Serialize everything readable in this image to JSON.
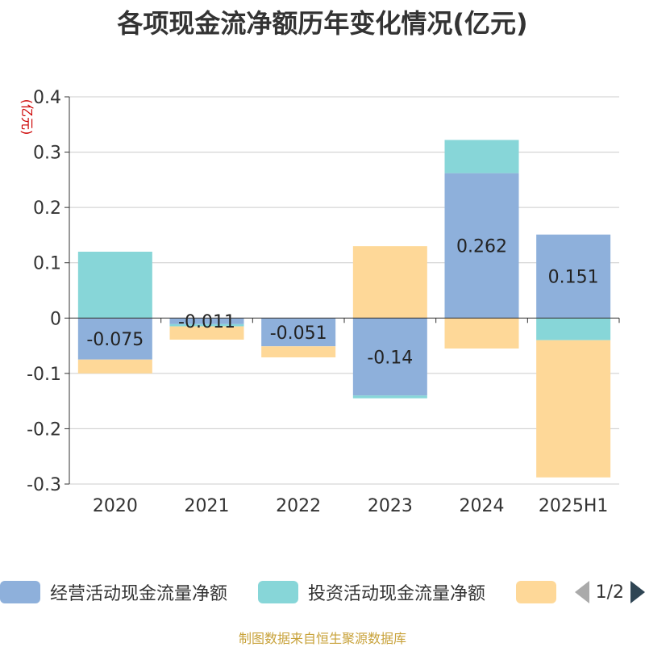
{
  "title": "各项现金流净额历年变化情况(亿元)",
  "footer": "制图数据来自恒生聚源数据库",
  "colors": {
    "operating": "#8eb0db",
    "investing": "#87d6d8",
    "financing": "#fed898",
    "grid": "#cccccc",
    "axis": "#333333",
    "unit_label": "#cc0000",
    "footer": "#c8a23a",
    "pager_active": "#2f4554",
    "pager_inactive": "#aaaaaa"
  },
  "legend": {
    "items": [
      {
        "label": "经营活动现金流量净额",
        "color": "#8eb0db"
      },
      {
        "label": "投资活动现金流量净额",
        "color": "#87d6d8"
      },
      {
        "label": "",
        "color": "#fed898"
      }
    ],
    "page_indicator": "1/2"
  },
  "chart_data": {
    "type": "bar",
    "stacked": true,
    "title": "各项现金流净额历年变化情况(亿元)",
    "ylabel": "(亿元)",
    "xlabel": "",
    "ylim": [
      -0.3,
      0.4
    ],
    "yticks": [
      -0.3,
      -0.2,
      -0.1,
      0,
      0.1,
      0.2,
      0.3,
      0.4
    ],
    "ytick_labels": [
      "-0.3",
      "-0.2",
      "-0.1",
      "0",
      "0.1",
      "0.2",
      "0.3",
      "0.4"
    ],
    "grid": true,
    "categories": [
      "2020",
      "2021",
      "2022",
      "2023",
      "2024",
      "2025H1"
    ],
    "series": [
      {
        "name": "经营活动现金流量净额",
        "color": "#8eb0db",
        "values": [
          -0.075,
          -0.011,
          -0.051,
          -0.14,
          0.262,
          0.151
        ],
        "labels": [
          "-0.075",
          "-0.011",
          "-0.051",
          "-0.14",
          "0.262",
          "0.151"
        ]
      },
      {
        "name": "投资活动现金流量净额",
        "color": "#87d6d8",
        "values": [
          0.12,
          -0.004,
          0.0,
          -0.005,
          0.06,
          -0.04
        ]
      },
      {
        "color": "#fed898",
        "values": [
          -0.025,
          -0.024,
          -0.02,
          0.13,
          -0.055,
          -0.248
        ]
      }
    ]
  }
}
